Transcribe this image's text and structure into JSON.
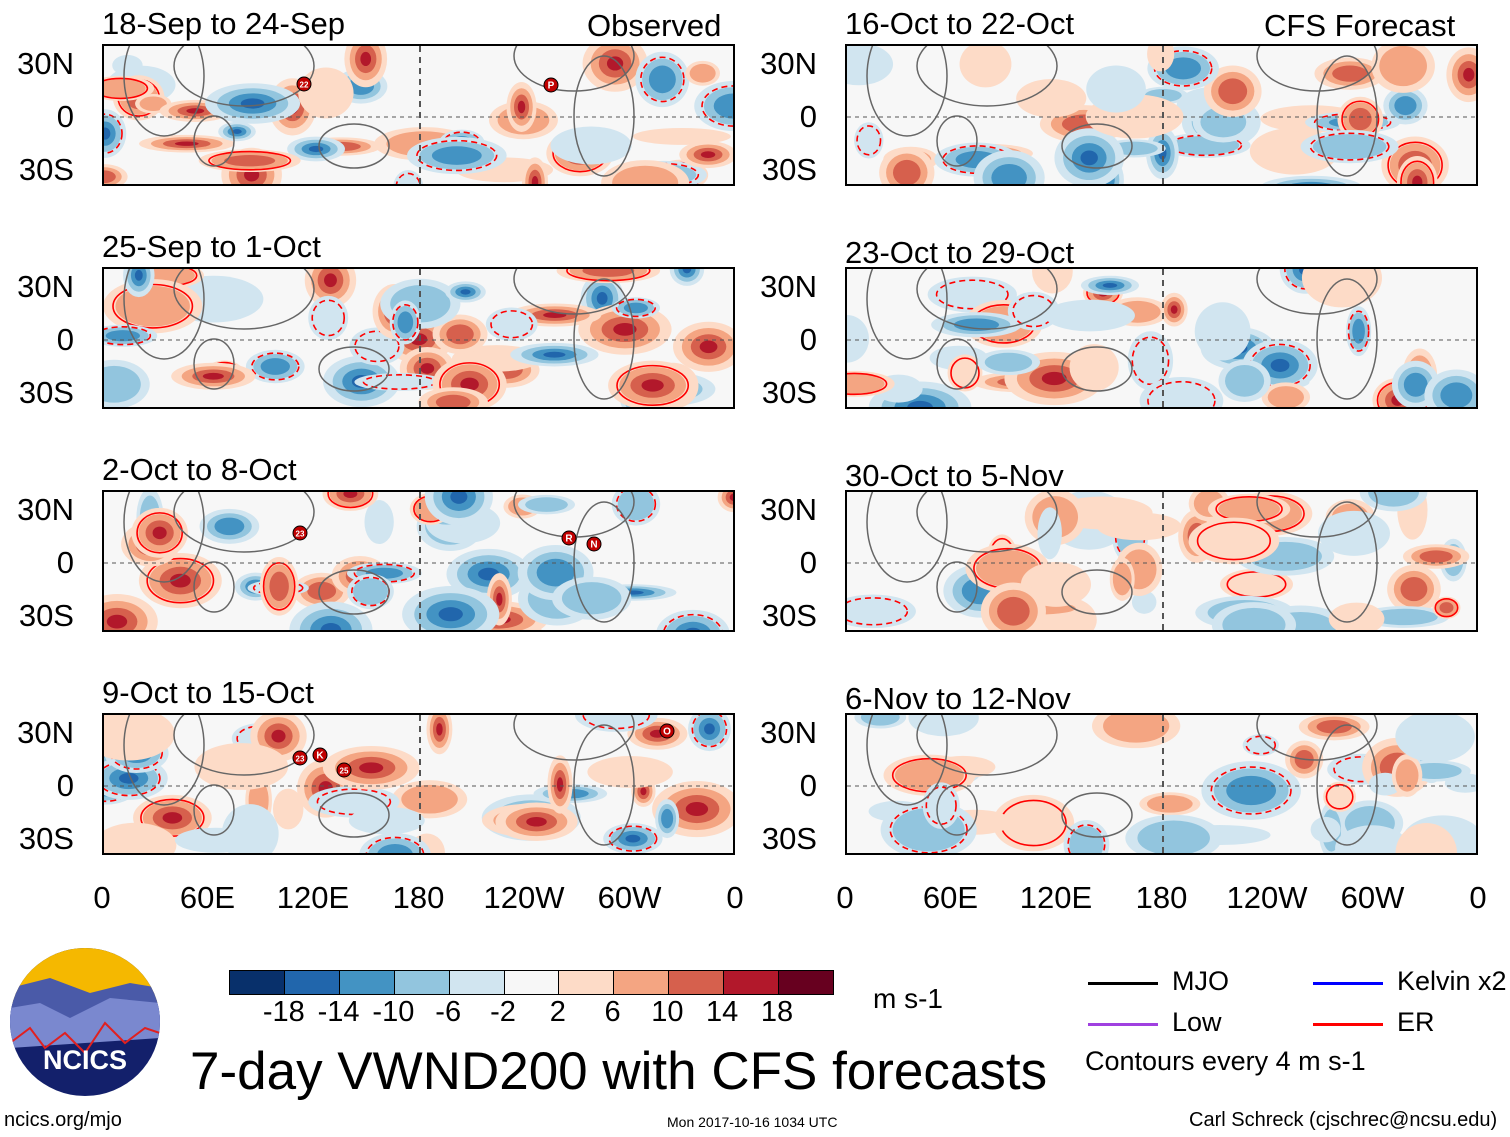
{
  "title": "7-day VWND200 with CFS forecasts",
  "footer": {
    "url": "ncics.org/mjo",
    "timestamp": "Mon 2017-10-16 1034 UTC",
    "author": "Carl Schreck (cjschrec@ncsu.edu)"
  },
  "logo_text": "NCICS",
  "columns": {
    "left": "Observed",
    "right": "CFS Forecast"
  },
  "lat_labels": [
    "30N",
    "0",
    "30S"
  ],
  "lon_labels": [
    "0",
    "60E",
    "120E",
    "180",
    "120W",
    "60W",
    "0"
  ],
  "chart_data": {
    "type": "heatmap",
    "units": "m s-1",
    "colorbar": {
      "levels": [
        "-18",
        "-14",
        "-10",
        "-6",
        "-2",
        "2",
        "6",
        "10",
        "14",
        "18"
      ],
      "colors": [
        "#08306b",
        "#2166ac",
        "#4393c3",
        "#92c5de",
        "#d1e5f0",
        "#f7f7f7",
        "#fddbc7",
        "#f4a582",
        "#d6604d",
        "#b2182b",
        "#67001f"
      ]
    },
    "lat_range": [
      "30S",
      "30N"
    ],
    "lon_range": [
      "0",
      "0"
    ],
    "panels": [
      {
        "title": "18-Sep to 24-Sep",
        "source": "Observed",
        "storms": [
          "22",
          "P"
        ]
      },
      {
        "title": "25-Sep to 1-Oct",
        "source": "Observed",
        "storms": []
      },
      {
        "title": "2-Oct to 8-Oct",
        "source": "Observed",
        "storms": [
          "23",
          "R",
          "N"
        ]
      },
      {
        "title": "9-Oct to 15-Oct",
        "source": "Observed",
        "storms": [
          "23",
          "K",
          "25",
          "O"
        ]
      },
      {
        "title": "16-Oct to 22-Oct",
        "source": "CFS Forecast",
        "storms": []
      },
      {
        "title": "23-Oct to 29-Oct",
        "source": "CFS Forecast",
        "storms": []
      },
      {
        "title": "30-Oct to 5-Nov",
        "source": "CFS Forecast",
        "storms": []
      },
      {
        "title": "6-Nov to 12-Nov",
        "source": "CFS Forecast",
        "storms": []
      }
    ],
    "legend": {
      "units_label": "m s-1",
      "items": [
        {
          "label": "MJO",
          "color": "#000000"
        },
        {
          "label": "Kelvin x2",
          "color": "#0000ff"
        },
        {
          "label": "Low",
          "color": "#a040e0"
        },
        {
          "label": "ER",
          "color": "#ff0000"
        }
      ],
      "note": "Contours every 4 m s-1"
    }
  }
}
